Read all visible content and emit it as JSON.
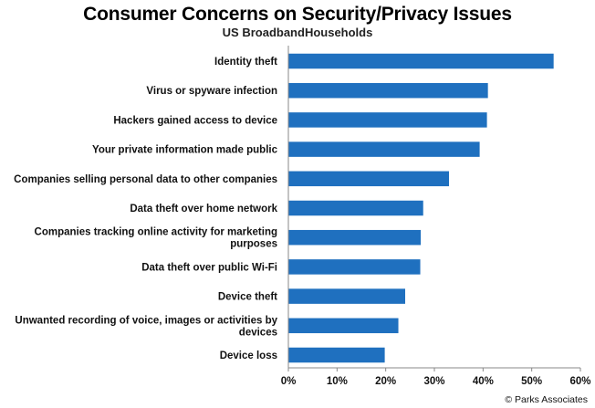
{
  "chart_data": {
    "type": "bar",
    "orientation": "horizontal",
    "title": "Consumer Concerns on Security/Privacy Issues",
    "subtitle": "US BroadbandHouseholds",
    "categories": [
      [
        "Identity theft"
      ],
      [
        "Virus or spyware infection"
      ],
      [
        "Hackers gained access to device"
      ],
      [
        "Your private information made public"
      ],
      [
        "Companies selling personal data to other companies"
      ],
      [
        "Data theft over home network"
      ],
      [
        "Companies tracking online activity for marketing",
        "purposes"
      ],
      [
        "Data theft over public Wi-Fi"
      ],
      [
        "Device theft"
      ],
      [
        "Unwanted recording of voice, images or activities by",
        "devices"
      ],
      [
        "Device loss"
      ]
    ],
    "values": [
      54.5,
      41,
      40.8,
      39.3,
      33,
      27.7,
      27.2,
      27.1,
      24,
      22.6,
      19.8
    ],
    "xlim": [
      0,
      60
    ],
    "xticks": [
      0,
      10,
      20,
      30,
      40,
      50,
      60
    ],
    "tick_format": "%",
    "bar_color": "#1f70bf",
    "source": "© Parks Associates"
  }
}
